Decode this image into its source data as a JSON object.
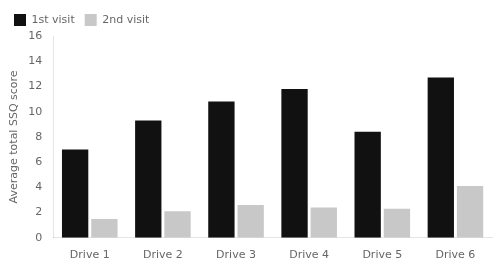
{
  "chart_data": {
    "type": "bar",
    "categories": [
      "Drive 1",
      "Drive 2",
      "Drive 3",
      "Drive 4",
      "Drive 5",
      "Drive 6"
    ],
    "series": [
      {
        "name": "1st visit",
        "color": "#111111",
        "values": [
          7.0,
          9.3,
          10.8,
          11.8,
          8.4,
          12.7
        ]
      },
      {
        "name": "2nd visit",
        "color": "#c8c8c8",
        "values": [
          1.5,
          2.1,
          2.6,
          2.4,
          2.3,
          4.1
        ]
      }
    ],
    "ylabel": "Average total SSQ score",
    "ylim": [
      0,
      16
    ],
    "yticks": [
      0,
      2,
      4,
      6,
      8,
      10,
      12,
      14,
      16
    ],
    "grid": false,
    "legend": "upper left"
  }
}
